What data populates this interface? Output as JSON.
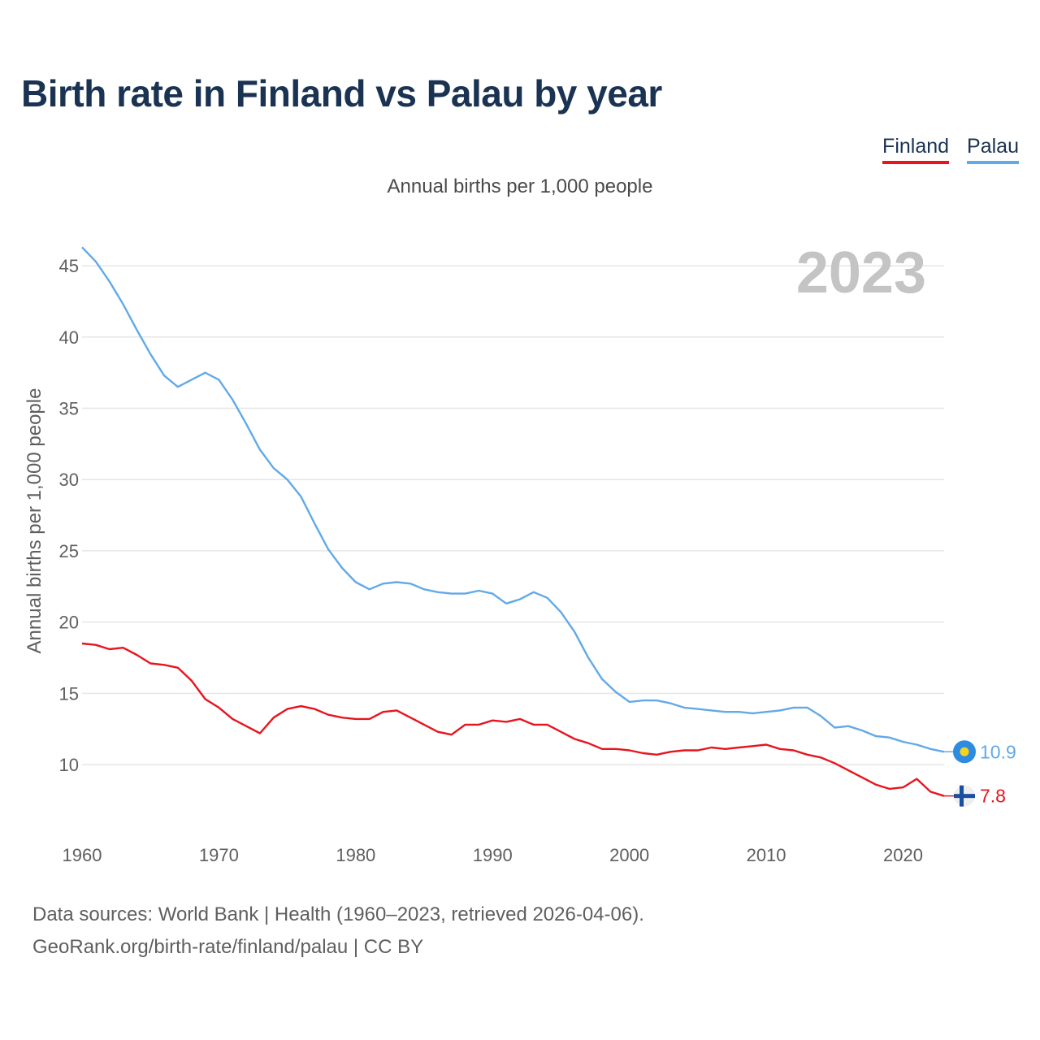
{
  "title": "Birth rate in Finland vs Palau by year",
  "subtitle": "Annual births per 1,000 people",
  "footer": {
    "line1": "Data sources: World Bank | Health (1960–2023, retrieved 2026-04-06).",
    "line2": "GeoRank.org/birth-rate/finland/palau | CC BY"
  },
  "chart_data": {
    "type": "line",
    "title": "Birth rate in Finland vs Palau by year",
    "ylabel": "Annual births per 1,000 people",
    "xlabel": "",
    "year_label": "2023",
    "xlim": [
      1960,
      2023
    ],
    "ylim": [
      5.5,
      47
    ],
    "xticks": [
      1960,
      1970,
      1980,
      1990,
      2000,
      2010,
      2020
    ],
    "yticks": [
      10,
      15,
      20,
      25,
      30,
      35,
      40,
      45
    ],
    "grid": true,
    "legend_position": "top-right",
    "x": [
      1960,
      1961,
      1962,
      1963,
      1964,
      1965,
      1966,
      1967,
      1968,
      1969,
      1970,
      1971,
      1972,
      1973,
      1974,
      1975,
      1976,
      1977,
      1978,
      1979,
      1980,
      1981,
      1982,
      1983,
      1984,
      1985,
      1986,
      1987,
      1988,
      1989,
      1990,
      1991,
      1992,
      1993,
      1994,
      1995,
      1996,
      1997,
      1998,
      1999,
      2000,
      2001,
      2002,
      2003,
      2004,
      2005,
      2006,
      2007,
      2008,
      2009,
      2010,
      2011,
      2012,
      2013,
      2014,
      2015,
      2016,
      2017,
      2018,
      2019,
      2020,
      2021,
      2022,
      2023
    ],
    "series": [
      {
        "name": "Finland",
        "color": "#e8141e",
        "end_label": "7.8",
        "flag": "finland-flag-icon",
        "values": [
          18.5,
          18.4,
          18.1,
          18.2,
          17.7,
          17.1,
          17.0,
          16.8,
          15.9,
          14.6,
          14.0,
          13.2,
          12.7,
          12.2,
          13.3,
          13.9,
          14.1,
          13.9,
          13.5,
          13.3,
          13.2,
          13.2,
          13.7,
          13.8,
          13.3,
          12.8,
          12.3,
          12.1,
          12.8,
          12.8,
          13.1,
          13.0,
          13.2,
          12.8,
          12.8,
          12.3,
          11.8,
          11.5,
          11.1,
          11.1,
          11.0,
          10.8,
          10.7,
          10.9,
          11.0,
          11.0,
          11.2,
          11.1,
          11.2,
          11.3,
          11.4,
          11.1,
          11.0,
          10.7,
          10.5,
          10.1,
          9.6,
          9.1,
          8.6,
          8.3,
          8.4,
          9.0,
          8.1,
          7.8
        ]
      },
      {
        "name": "Palau",
        "color": "#62a9e8",
        "end_label": "10.9",
        "flag": "palau-flag-icon",
        "values": [
          46.3,
          45.3,
          43.9,
          42.3,
          40.5,
          38.8,
          37.3,
          36.5,
          37.0,
          37.5,
          37.0,
          35.6,
          33.9,
          32.1,
          30.8,
          30.0,
          28.8,
          26.9,
          25.1,
          23.8,
          22.8,
          22.3,
          22.7,
          22.8,
          22.7,
          22.3,
          22.1,
          22.0,
          22.0,
          22.2,
          22.0,
          21.3,
          21.6,
          22.1,
          21.7,
          20.7,
          19.3,
          17.5,
          16.0,
          15.1,
          14.4,
          14.5,
          14.5,
          14.3,
          14.0,
          13.9,
          13.8,
          13.7,
          13.7,
          13.6,
          13.7,
          13.8,
          14.0,
          14.0,
          13.4,
          12.6,
          12.7,
          12.4,
          12.0,
          11.9,
          11.6,
          11.4,
          11.1,
          10.9
        ]
      }
    ]
  }
}
